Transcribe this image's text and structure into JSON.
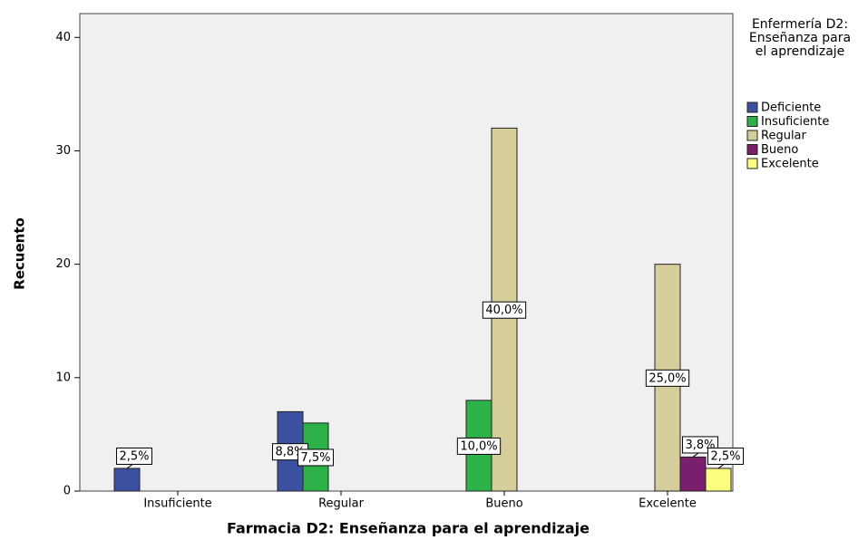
{
  "chart_data": {
    "type": "bar",
    "x_label": "Farmacia D2: Enseñanza para el aprendizaje",
    "y_label": "Recuento",
    "legend_title": "Enfermería D2: Enseñanza para el aprendizaje",
    "legend": "right",
    "categories": [
      "Insuficiente",
      "Regular",
      "Bueno",
      "Excelente"
    ],
    "series": [
      {
        "name": "Deficiente",
        "color": "#3d51a3",
        "values": [
          2,
          7,
          null,
          null
        ],
        "value_labels": [
          "2,5%",
          "8,8%",
          null,
          null
        ]
      },
      {
        "name": "Insuficiente",
        "color": "#2db24a",
        "values": [
          null,
          6,
          8,
          null
        ],
        "value_labels": [
          null,
          "7,5%",
          "10,0%",
          null
        ]
      },
      {
        "name": "Regular",
        "color": "#d5ce9b",
        "values": [
          null,
          null,
          32,
          20
        ],
        "value_labels": [
          null,
          null,
          "40,0%",
          "25,0%"
        ]
      },
      {
        "name": "Bueno",
        "color": "#7a1f6d",
        "values": [
          null,
          null,
          null,
          3
        ],
        "value_labels": [
          null,
          null,
          null,
          "3,8%"
        ]
      },
      {
        "name": "Excelente",
        "color": "#fdfd80",
        "values": [
          null,
          null,
          null,
          2
        ],
        "value_labels": [
          null,
          null,
          null,
          "2,5%"
        ]
      }
    ],
    "ylim": [
      0,
      42.1
    ],
    "yticks": [
      0,
      10,
      20,
      30,
      40
    ],
    "grid": false
  }
}
